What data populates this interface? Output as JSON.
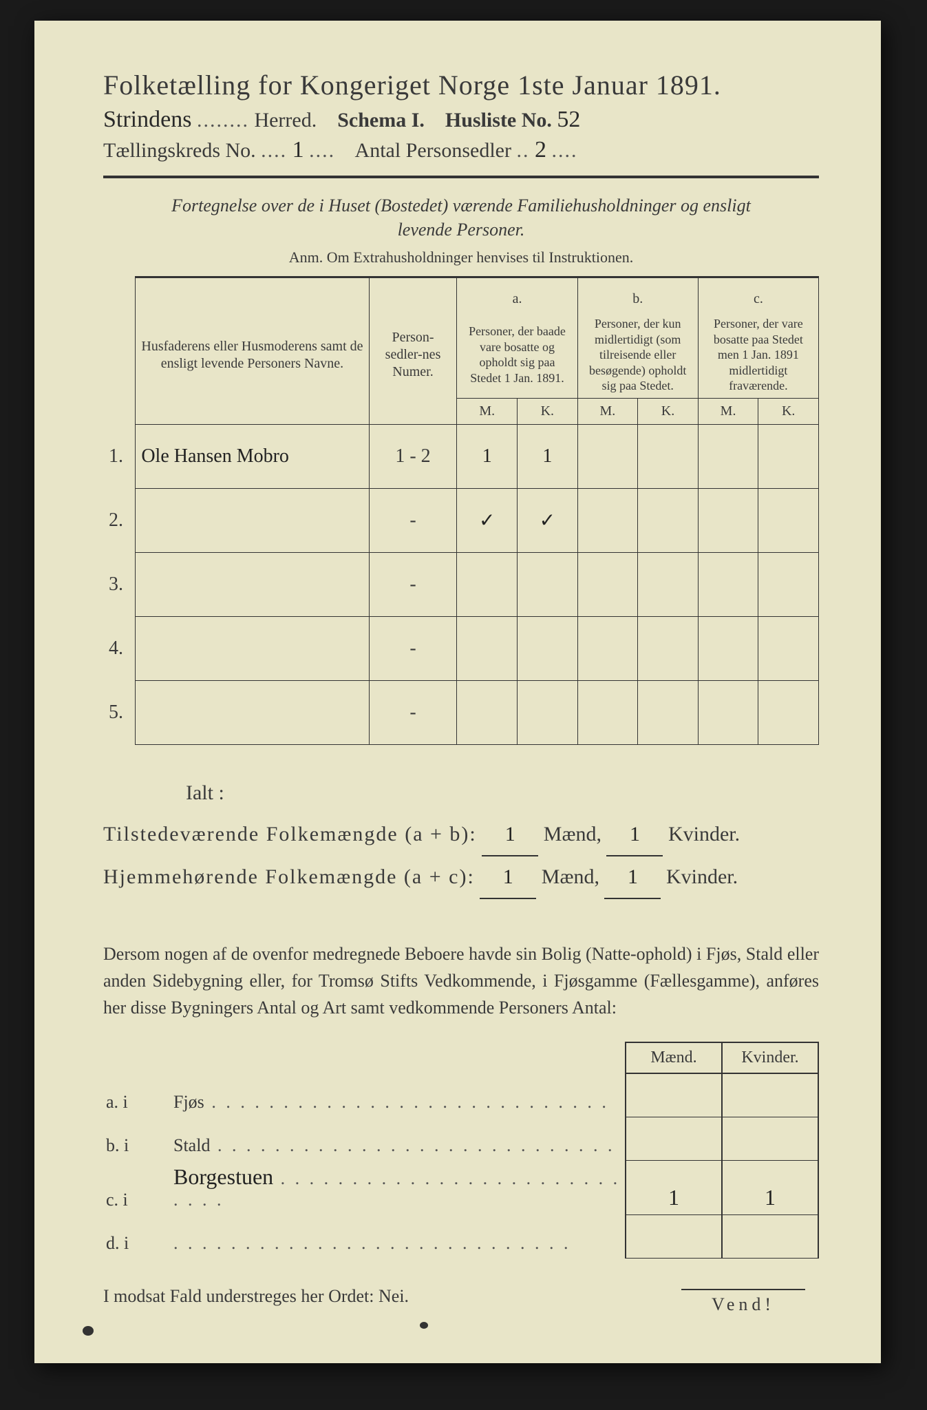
{
  "header": {
    "title": "Folketælling for Kongeriget Norge 1ste Januar 1891.",
    "herred_value": "Strindens",
    "herred_label": "Herred.",
    "schema_label": "Schema I.",
    "husliste_label": "Husliste No.",
    "husliste_value": "52",
    "kreds_label": "Tællingskreds No.",
    "kreds_value": "1",
    "antal_label": "Antal Personsedler",
    "antal_value": "2"
  },
  "subhead": {
    "line1": "Fortegnelse over de i Huset (Bostedet) værende Familiehusholdninger og ensligt",
    "line2": "levende Personer.",
    "anm": "Anm.  Om Extrahusholdninger henvises til Instruktionen."
  },
  "table": {
    "col_name": "Husfaderens eller Husmoderens samt de ensligt levende Personers Navne.",
    "col_num": "Person-sedler-nes Numer.",
    "col_a_top": "a.",
    "col_a": "Personer, der baade vare bosatte og opholdt sig paa Stedet 1 Jan. 1891.",
    "col_b_top": "b.",
    "col_b": "Personer, der kun midlertidigt (som tilreisende eller besøgende) opholdt sig paa Stedet.",
    "col_c_top": "c.",
    "col_c": "Personer, der vare bosatte paa Stedet men 1 Jan. 1891 midlertidigt fraværende.",
    "M": "M.",
    "K": "K.",
    "rows": [
      {
        "n": "1.",
        "name": "Ole Hansen Mobro",
        "num": "1 - 2",
        "aM": "1",
        "aK": "1",
        "bM": "",
        "bK": "",
        "cM": "",
        "cK": ""
      },
      {
        "n": "2.",
        "name": "",
        "num": "-",
        "aM": "✓",
        "aK": "✓",
        "bM": "",
        "bK": "",
        "cM": "",
        "cK": ""
      },
      {
        "n": "3.",
        "name": "",
        "num": "-",
        "aM": "",
        "aK": "",
        "bM": "",
        "bK": "",
        "cM": "",
        "cK": ""
      },
      {
        "n": "4.",
        "name": "",
        "num": "-",
        "aM": "",
        "aK": "",
        "bM": "",
        "bK": "",
        "cM": "",
        "cK": ""
      },
      {
        "n": "5.",
        "name": "",
        "num": "-",
        "aM": "",
        "aK": "",
        "bM": "",
        "bK": "",
        "cM": "",
        "cK": ""
      }
    ]
  },
  "totals": {
    "ialt": "Ialt :",
    "tilstede_label": "Tilstedeværende Folkemængde (a + b):",
    "hjemme_label": "Hjemmehørende Folkemængde (a + c):",
    "maend": "Mænd,",
    "kvinder": "Kvinder.",
    "t_m": "1",
    "t_k": "1",
    "h_m": "1",
    "h_k": "1"
  },
  "para": "Dersom nogen af de ovenfor medregnede Beboere havde sin Bolig (Natte-ophold) i Fjøs, Stald eller anden Sidebygning eller, for Tromsø Stifts Vedkommende, i Fjøsgamme (Fællesgamme), anføres her disse Bygningers Antal og Art samt vedkommende Personers Antal:",
  "sub": {
    "maend": "Mænd.",
    "kvinder": "Kvinder.",
    "rows": [
      {
        "k": "a.  i",
        "label": "Fjøs",
        "m": "",
        "f": ""
      },
      {
        "k": "b.  i",
        "label": "Stald",
        "m": "",
        "f": ""
      },
      {
        "k": "c.  i",
        "label": "Borgestuen",
        "m": "1",
        "f": "1",
        "hand": true
      },
      {
        "k": "d.  i",
        "label": "",
        "m": "",
        "f": ""
      }
    ]
  },
  "nei": "I modsat Fald understreges her Ordet: Nei.",
  "vend": "Vend!",
  "colors": {
    "paper": "#e8e5c8",
    "ink": "#3a3a3a",
    "bg": "#1a1a1a"
  }
}
